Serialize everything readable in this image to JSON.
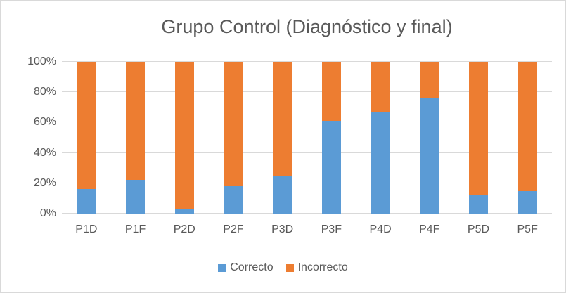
{
  "window": {
    "background": "#ffffff",
    "border_color": "#d9d9d9"
  },
  "chart_data": {
    "type": "bar",
    "subtype": "stacked-100-percent",
    "title": "Grupo Control (Diagnóstico y final)",
    "categories": [
      "P1D",
      "P1F",
      "P2D",
      "P2F",
      "P3D",
      "P3F",
      "P4D",
      "P4F",
      "P5D",
      "P5F"
    ],
    "series": [
      {
        "name": "Correcto",
        "color": "#5b9bd5",
        "values": [
          16,
          22,
          3,
          18,
          25,
          61,
          67,
          76,
          12,
          15
        ]
      },
      {
        "name": "Incorrecto",
        "color": "#ed7d31",
        "values": [
          84,
          78,
          97,
          82,
          75,
          39,
          33,
          24,
          88,
          85
        ]
      }
    ],
    "xlabel": "",
    "ylabel": "",
    "ylim": [
      0,
      100
    ],
    "y_ticks": [
      "0%",
      "20%",
      "40%",
      "60%",
      "80%",
      "100%"
    ],
    "y_tick_values": [
      0,
      20,
      40,
      60,
      80,
      100
    ],
    "grid": "horizontal",
    "gridline_color": "#d9d9d9",
    "text_color": "#595959",
    "legend_position": "bottom"
  }
}
